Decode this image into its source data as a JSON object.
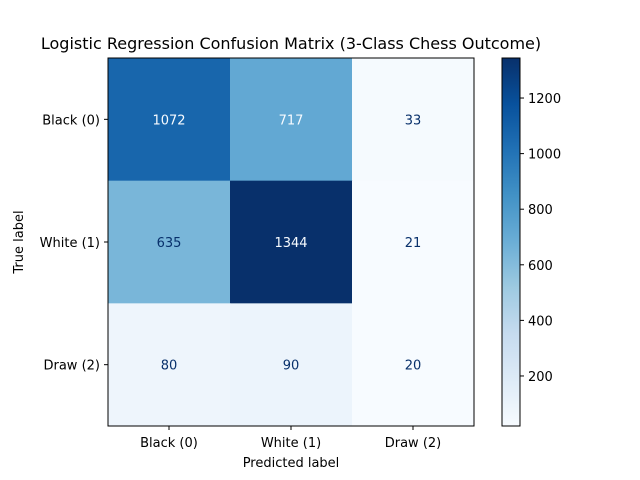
{
  "chart_data": {
    "type": "heatmap",
    "title": "Logistic Regression Confusion Matrix (3-Class Chess Outcome)",
    "xlabel": "Predicted label",
    "ylabel": "True label",
    "x_categories": [
      "Black (0)",
      "White (1)",
      "Draw (2)"
    ],
    "y_categories": [
      "Black (0)",
      "White (1)",
      "Draw (2)"
    ],
    "values": [
      [
        1072,
        717,
        33
      ],
      [
        635,
        1344,
        21
      ],
      [
        80,
        90,
        20
      ]
    ],
    "colormap": "Blues",
    "colorbar": {
      "range": [
        20,
        1344
      ],
      "ticks": [
        200,
        400,
        600,
        800,
        1000,
        1200
      ]
    }
  }
}
